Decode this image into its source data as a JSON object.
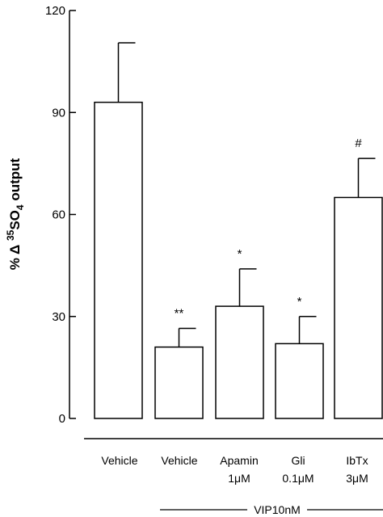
{
  "chart_data": {
    "type": "bar",
    "title": "",
    "xlabel": "",
    "ylabel_parts": [
      "% ",
      "Δ",
      " ",
      "35",
      "SO",
      "4",
      " output"
    ],
    "ylim": [
      0,
      120
    ],
    "yticks": [
      0,
      30,
      60,
      90,
      120
    ],
    "categories": [
      {
        "line1": "Vehicle",
        "line2": ""
      },
      {
        "line1": "Vehicle",
        "line2": ""
      },
      {
        "line1": "Apamin",
        "line2": "1μM"
      },
      {
        "line1": "Gli",
        "line2": "0.1μM"
      },
      {
        "line1": "IbTx",
        "line2": "3μM"
      }
    ],
    "values": [
      93,
      21,
      33,
      22,
      65
    ],
    "errors": [
      17.5,
      5.5,
      11,
      8,
      11.5
    ],
    "annotations": [
      "",
      "**",
      "*",
      "*",
      "#"
    ],
    "group_label": "VIP10nM",
    "bar_fill": "#ffffff",
    "bar_stroke": "#000000"
  }
}
